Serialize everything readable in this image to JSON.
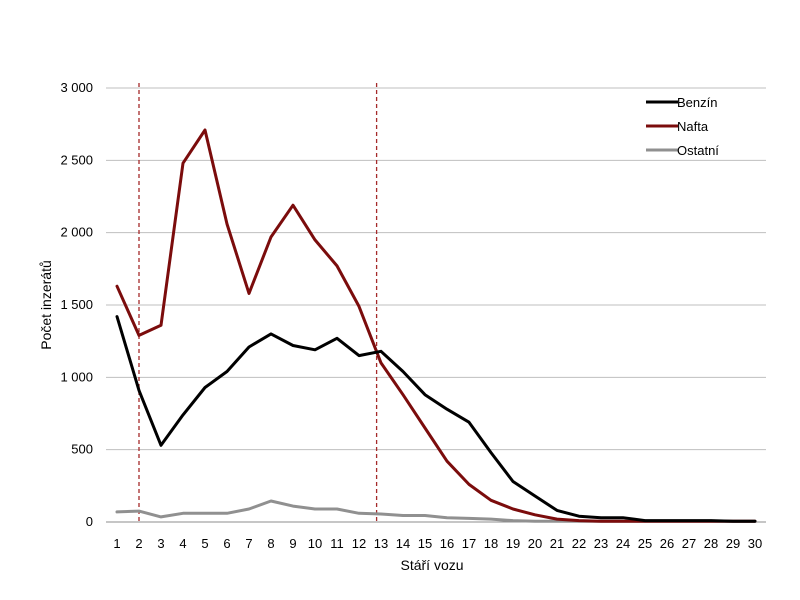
{
  "chart_data": {
    "type": "line",
    "xlabel": "Stáří vozu",
    "ylabel": "Počet inzerátů",
    "x": [
      1,
      2,
      3,
      4,
      5,
      6,
      7,
      8,
      9,
      10,
      11,
      12,
      13,
      14,
      15,
      16,
      17,
      18,
      19,
      20,
      21,
      22,
      23,
      24,
      25,
      26,
      27,
      28,
      29,
      30
    ],
    "ylim": [
      0,
      3000
    ],
    "yticks": [
      0,
      500,
      1000,
      1500,
      2000,
      2500,
      3000
    ],
    "ytick_labels": [
      "0",
      "500",
      "1 000",
      "1 500",
      "2 000",
      "2 500",
      "3 000"
    ],
    "grid": "horizontal",
    "legend_position": "top-right",
    "reference_lines_x": [
      2,
      12.8
    ],
    "reference_line_color": "#a52a2a",
    "series": [
      {
        "name": "Benzín",
        "color": "#000000",
        "values": [
          1420,
          910,
          530,
          740,
          930,
          1040,
          1210,
          1300,
          1220,
          1190,
          1270,
          1150,
          1180,
          1040,
          880,
          780,
          690,
          480,
          280,
          180,
          80,
          40,
          30,
          30,
          10,
          10,
          10,
          10,
          5,
          5
        ]
      },
      {
        "name": "Nafta",
        "color": "#7b0c0c",
        "values": [
          1630,
          1290,
          1360,
          2480,
          2710,
          2060,
          1580,
          1970,
          2190,
          1950,
          1770,
          1490,
          1100,
          880,
          650,
          420,
          260,
          150,
          90,
          50,
          20,
          10,
          5,
          5,
          5,
          5,
          5,
          5,
          5,
          5
        ]
      },
      {
        "name": "Ostatní",
        "color": "#909090",
        "values": [
          70,
          75,
          35,
          60,
          60,
          60,
          90,
          145,
          110,
          90,
          90,
          60,
          55,
          45,
          45,
          30,
          25,
          20,
          10,
          5,
          5,
          5,
          5,
          5,
          5,
          5,
          5,
          5,
          5,
          5
        ]
      }
    ]
  }
}
